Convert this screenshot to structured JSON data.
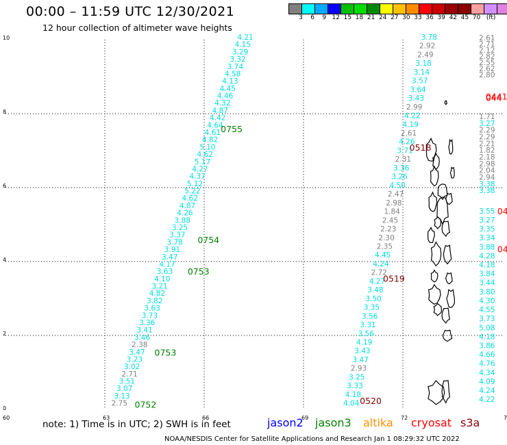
{
  "header": {
    "title": "00:00 – 11:59 UTC 12/30/2021",
    "subtitle": "12 hour collection of altimeter wave heights"
  },
  "legend": {
    "colors": [
      "#808080",
      "#00ffff",
      "#00aaff",
      "#0000ff",
      "#00c000",
      "#00dd00",
      "#008800",
      "#ffff00",
      "#ffc000",
      "#ff8c00",
      "#ff0000",
      "#cc0000",
      "#990000",
      "#880000",
      "#ffa0a0",
      "#d090ff",
      "#e080e0",
      "#000000"
    ],
    "labels": [
      "3",
      "6",
      "9",
      "12",
      "15",
      "18",
      "21",
      "24",
      "27",
      "30",
      "33",
      "36",
      "39",
      "42",
      "45",
      "70",
      "(ft)"
    ]
  },
  "map": {
    "xlim": [
      60,
      75
    ],
    "ylim": [
      0,
      10
    ],
    "x_ticks": [
      "60",
      "63",
      "66",
      "69",
      "72",
      "75"
    ],
    "y_ticks": [
      "0",
      "2",
      "4",
      "6",
      "8",
      "10"
    ],
    "time_labels": [
      {
        "text": "0755",
        "lon": 66.5,
        "lat": 7.5,
        "color": "#008000"
      },
      {
        "text": "0754",
        "lon": 65.8,
        "lat": 4.5,
        "color": "#008000"
      },
      {
        "text": "0753",
        "lon": 65.5,
        "lat": 3.65,
        "color": "#008000"
      },
      {
        "text": "0753",
        "lon": 64.5,
        "lat": 1.45,
        "color": "#008000"
      },
      {
        "text": "0752",
        "lon": 63.9,
        "lat": 0.05,
        "color": "#008000"
      },
      {
        "text": "0518",
        "lon": 72.2,
        "lat": 7.0,
        "color": "#800000"
      },
      {
        "text": "0519",
        "lon": 71.4,
        "lat": 3.45,
        "color": "#800000"
      },
      {
        "text": "0520",
        "lon": 70.7,
        "lat": 0.15,
        "color": "#800000"
      },
      {
        "text": "0441",
        "lon": 74.5,
        "lat": 8.38,
        "color": "#ff0000"
      },
      {
        "text": "044",
        "lon": 74.5,
        "lat": 8.34,
        "color": "#ff0000"
      },
      {
        "text": "04",
        "lon": 74.85,
        "lat": 5.28,
        "color": "#ff0000"
      },
      {
        "text": "04",
        "lon": 74.85,
        "lat": 4.25,
        "color": "#ff0000"
      }
    ],
    "tracks": [
      {
        "name": "jason3 a",
        "color_default": "#00dddd",
        "x0": 63.2,
        "y0": 0.1,
        "x1": 67.0,
        "y1": 10.0,
        "values": [
          "2.75",
          "3.13",
          "3.07",
          "3.51",
          "2.71",
          "3.02",
          "3.23",
          "3.47",
          "2.38",
          "3.46",
          "3.41",
          "3.36",
          "3.73",
          "3.63",
          "3.82",
          "4.82",
          "3.21",
          "4.10",
          "3.63",
          "4.17",
          "3.47",
          "3.91",
          "3.78",
          "3.37",
          "3.25",
          "3.88",
          "4.26",
          "4.87",
          "4.62",
          "5.22",
          "5.12",
          "4.37",
          "4.27",
          "5.17",
          "4.62",
          "5.10",
          "4.82",
          "4.61",
          "4.64",
          "4.42",
          "4.87",
          "4.32",
          "4.46",
          "4.45",
          "4.13",
          "4.58",
          "3.74",
          "3.32",
          "3.29",
          "4.15",
          "4.21"
        ],
        "gray": [
          0,
          4,
          8
        ]
      },
      {
        "name": "altika b",
        "color_default": "#00dddd",
        "x0": 70.2,
        "y0": 0.1,
        "x1": 72.55,
        "y1": 10.0,
        "values": [
          "4.04",
          "4.18",
          "3.33",
          "3.25",
          "2.93",
          "3.47",
          "3.43",
          "4.19",
          "3.56",
          "3.31",
          "3.56",
          "3.35",
          "3.50",
          "3.48",
          "4.27",
          "2.72",
          "4.24",
          "4.45",
          "2.35",
          "2.30",
          "2.23",
          "2.45",
          "1.84",
          "2.98",
          "2.47",
          "4.50",
          "3.26",
          "3.36",
          "2.31",
          "3.71",
          "4.26",
          "2.61",
          "4.19",
          "4.22",
          "2.99",
          "3.43",
          "3.64",
          "3.57",
          "3.14",
          "3.18",
          "2.49",
          "2.92",
          "3.78"
        ],
        "gray": [
          4,
          15,
          18,
          19,
          20,
          21,
          22,
          23,
          24,
          28,
          31,
          34,
          40,
          41
        ]
      },
      {
        "name": "c right",
        "color_default": "#808080",
        "x0": 74.3,
        "y0": 8.98,
        "x1": 74.3,
        "y1": 9.98,
        "values": [
          "2.80",
          "2.62",
          "2.55",
          "2.82",
          "2.12",
          "2.71",
          "2.61"
        ],
        "gray": []
      },
      {
        "name": "d right",
        "color_default": "#808080",
        "x0": 74.3,
        "y0": 5.85,
        "x1": 74.3,
        "y1": 7.85,
        "values": [
          "3.38",
          "3.38",
          "2.94",
          "2.04",
          "2.98",
          "2.18",
          "1.82",
          "2.21",
          "2.29",
          "2.29",
          "3.27",
          "1.71"
        ],
        "cyan": [
          0,
          1,
          10
        ]
      },
      {
        "name": "e right",
        "color_default": "#00dddd",
        "x0": 74.3,
        "y0": 0.2,
        "x1": 74.3,
        "y1": 5.3,
        "values": [
          "4.22",
          "4.24",
          "4.09",
          "4.34",
          "4.76",
          "4.66",
          "3.86",
          "4.18",
          "5.08",
          "3.73",
          "4.55",
          "4.30",
          "3.80",
          "3.44",
          "3.84",
          "4.18",
          "4.28",
          "3.88",
          "3.34",
          "3.35",
          "3.27",
          "3.55"
        ],
        "gray": []
      }
    ]
  },
  "note": "note: 1) Time is in UTC; 2) SWH is in feet",
  "satellites": [
    {
      "name": "jason2",
      "color": "#0000ff"
    },
    {
      "name": "jason3",
      "color": "#008000"
    },
    {
      "name": "altika",
      "color": "#ff8c00"
    },
    {
      "name": "cryosat",
      "color": "#ff0000"
    },
    {
      "name": "s3a",
      "color": "#880000"
    }
  ],
  "footer": "NOAA/NESDIS Center for Satellite Applications and Research   Jan  1 08:29:32 UTC 2022"
}
